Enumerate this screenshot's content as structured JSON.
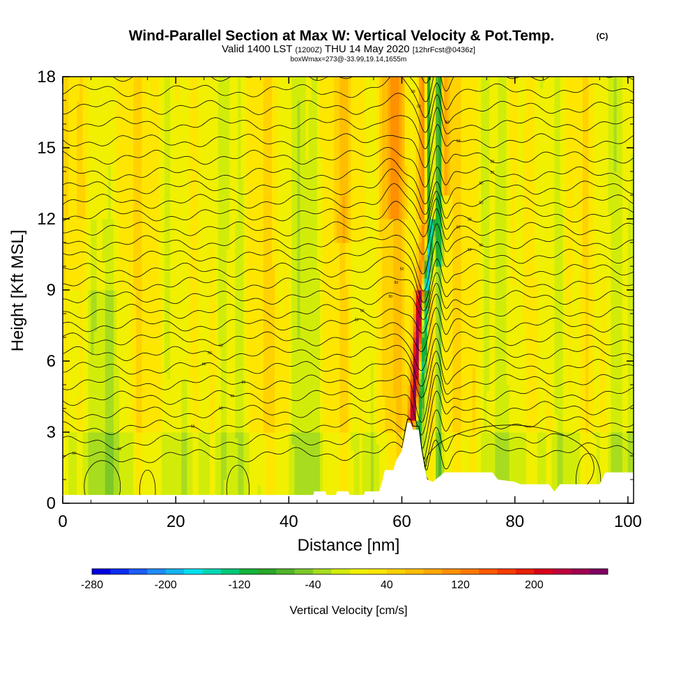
{
  "chart_data": {
    "type": "heatmap",
    "title": "Wind-Parallel Section at Max W: Vertical Velocity & Pot.Temp.",
    "title_mark": "(C)",
    "subtitle_main": "Valid 1400 LST",
    "subtitle_utc": "(1200Z)",
    "subtitle_date": "THU 14 May 2020",
    "subtitle_fcst": "[12hrFcst@0436z]",
    "subsubtitle": "boxWmax=273@-33.99,19.14,1655m",
    "xlabel": "Distance [nm]",
    "ylabel": "Height [Kft MSL]",
    "xlim": [
      0,
      101
    ],
    "ylim": [
      0,
      18
    ],
    "x_ticks": [
      0,
      20,
      40,
      60,
      80,
      100
    ],
    "y_ticks": [
      0,
      3,
      6,
      9,
      12,
      15,
      18
    ],
    "colorbar": {
      "label": "Vertical Velocity [cm/s]",
      "range": [
        -280,
        280
      ],
      "step": 20,
      "tick_labels": [
        "-280",
        "-200",
        "-120",
        "-40",
        "40",
        "120",
        "200"
      ],
      "tick_values": [
        -280,
        -200,
        -120,
        -40,
        40,
        120,
        200
      ],
      "colors": [
        "#0000e0",
        "#0a2cf0",
        "#1c5cf5",
        "#1e8cf8",
        "#12b4f0",
        "#00e0f0",
        "#00d8b4",
        "#00c878",
        "#14b43c",
        "#28a828",
        "#50b428",
        "#7cc828",
        "#a8dc1e",
        "#d2ec0a",
        "#f0f000",
        "#ffe600",
        "#ffd200",
        "#ffbe00",
        "#ffa800",
        "#ff9000",
        "#ff7800",
        "#ff5a00",
        "#f83c00",
        "#e81e00",
        "#d80018",
        "#c0003c",
        "#a00050",
        "#800060"
      ]
    },
    "updraft_core": {
      "x": [
        60.5,
        64.5,
        67
      ],
      "peak_cm_s": 273,
      "peak_height_m": 1655
    },
    "theta_contour_labels": [
      "50",
      "50",
      "50",
      "50",
      "50",
      "50",
      "50",
      "50",
      "50",
      "50",
      "50",
      "50",
      "50",
      "50",
      "50",
      "50",
      "50",
      "50",
      "50",
      "50",
      "50",
      "50",
      "50",
      "50",
      "50",
      "50",
      "50",
      "50"
    ],
    "terrain": {
      "x": [
        0,
        44,
        44.5,
        46.5,
        47,
        48,
        48.5,
        50.5,
        51,
        53,
        53.5,
        56,
        56.5,
        57,
        58.5,
        59,
        60,
        60.5,
        61,
        61.5,
        62,
        63,
        63.5,
        64,
        64.5,
        65.5,
        66,
        67.5,
        69,
        71,
        76,
        77,
        80,
        81,
        86,
        87,
        88,
        95,
        96,
        101
      ],
      "h": [
        0,
        0,
        0.5,
        0.5,
        0,
        0,
        0.5,
        0.5,
        0.2,
        0.2,
        0.5,
        0.5,
        0.9,
        1.4,
        1.4,
        1.8,
        2.2,
        2.8,
        3.4,
        3.4,
        3.1,
        3.1,
        2.2,
        1.5,
        1.0,
        0.9,
        1.0,
        1.3,
        1.3,
        1.3,
        1.3,
        1.0,
        0.9,
        0.8,
        0.8,
        0.5,
        0.8,
        0.8,
        1.3,
        1.3
      ]
    }
  }
}
